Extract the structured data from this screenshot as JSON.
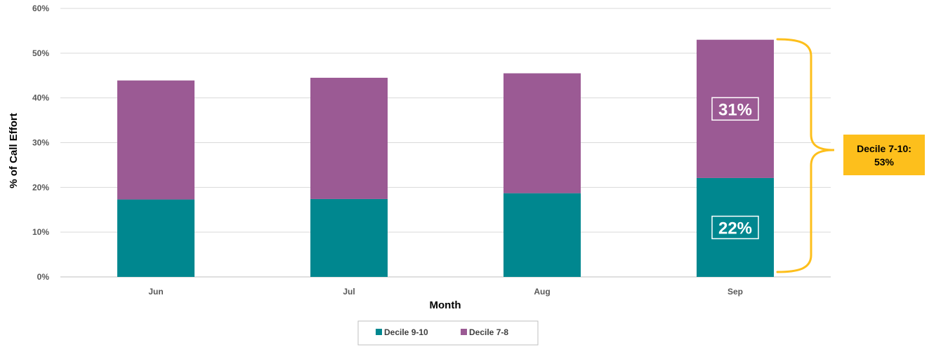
{
  "chart_data": {
    "type": "bar",
    "stacked": true,
    "categories": [
      "Jun",
      "Jul",
      "Aug",
      "Sep"
    ],
    "series": [
      {
        "name": "Decile 9-10",
        "color": "#00878f",
        "values": [
          17.3,
          17.4,
          18.7,
          22.1
        ]
      },
      {
        "name": "Decile 7-8",
        "color": "#9b5a94",
        "values": [
          26.6,
          27.1,
          26.8,
          30.9
        ]
      }
    ],
    "xlabel": "Month",
    "ylabel": "% of Call Effort",
    "ylim": [
      0,
      60
    ],
    "yticks": [
      "0%",
      "10%",
      "20%",
      "30%",
      "40%",
      "50%",
      "60%"
    ],
    "grid": true,
    "legend_position": "bottom",
    "annotations": {
      "bar_labels": [
        {
          "category": "Sep",
          "series": "Decile 7-8",
          "text": "31%"
        },
        {
          "category": "Sep",
          "series": "Decile 9-10",
          "text": "22%"
        }
      ],
      "callout": {
        "line1": "Decile 7-10:",
        "line2": "53%",
        "color": "#fdbf1c"
      }
    }
  }
}
